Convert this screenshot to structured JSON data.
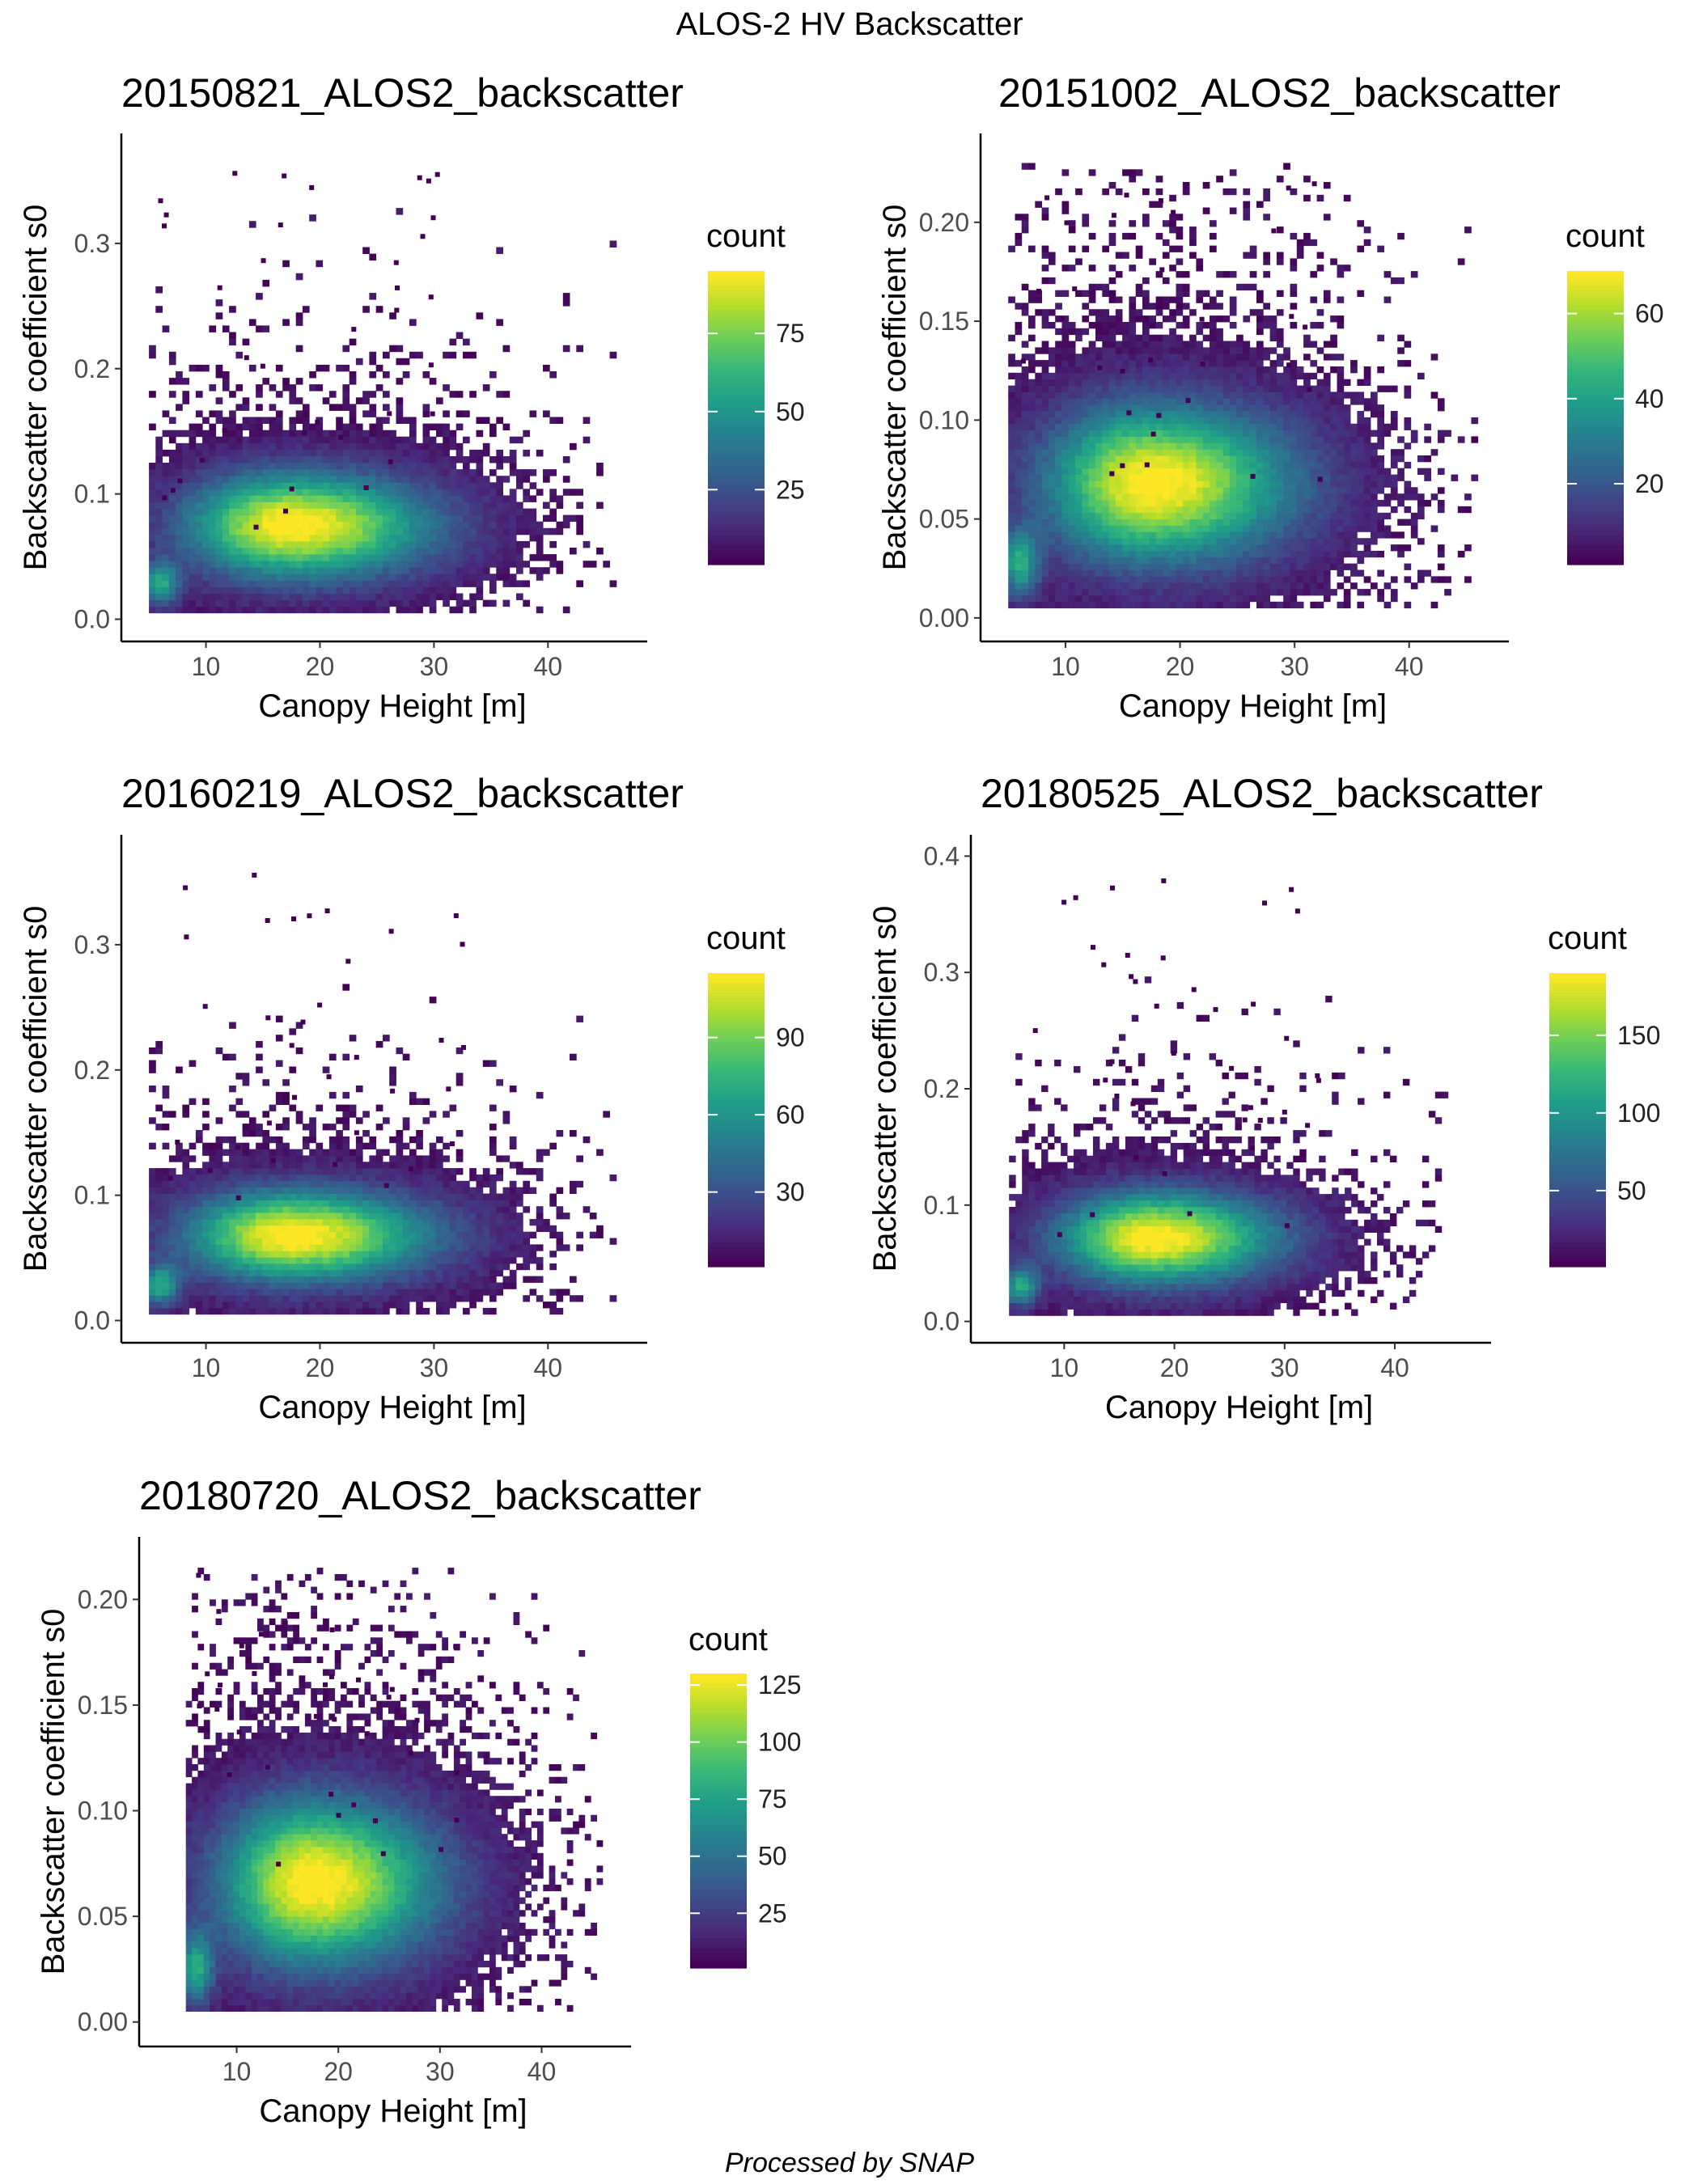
{
  "title": "ALOS-2 HV Backscatter",
  "caption": "Processed by SNAP",
  "chart_data": [
    {
      "type": "heatmap",
      "title": "20150821_ALOS2_backscatter",
      "xlabel": "Canopy Height [m]",
      "ylabel": "Backscatter coefficient s0",
      "xlim": [
        4,
        48
      ],
      "ylim": [
        -0.01,
        0.38
      ],
      "xticks": [
        10,
        20,
        30,
        40
      ],
      "yticks": [
        0.0,
        0.1,
        0.2,
        0.3
      ],
      "ytick_labels": [
        "0.0",
        "0.1",
        "0.2",
        "0.3"
      ],
      "legend": {
        "title": "count",
        "min": 1,
        "max": 95,
        "ticks": [
          25,
          50,
          75
        ]
      },
      "cluster": {
        "x_center": 17.5,
        "y_center": 0.075,
        "x_spread": 6.5,
        "y_spread": 0.03
      },
      "secondary_cluster": {
        "x": 6.0,
        "y": 0.028
      },
      "x_extent": [
        5,
        46
      ],
      "y_extent": [
        0.005,
        0.37
      ]
    },
    {
      "type": "heatmap",
      "title": "20151002_ALOS2_backscatter",
      "xlabel": "Canopy Height [m]",
      "ylabel": "Backscatter coefficient s0",
      "xlim": [
        4,
        48
      ],
      "ylim": [
        -0.007,
        0.24
      ],
      "xticks": [
        10,
        20,
        30,
        40
      ],
      "yticks": [
        0.0,
        0.05,
        0.1,
        0.15,
        0.2
      ],
      "ytick_labels": [
        "0.00",
        "0.05",
        "0.10",
        "0.15",
        "0.20"
      ],
      "legend": {
        "title": "count",
        "min": 1,
        "max": 70,
        "ticks": [
          20,
          40,
          60
        ]
      },
      "cluster": {
        "x_center": 17.5,
        "y_center": 0.068,
        "x_spread": 6.5,
        "y_spread": 0.028
      },
      "secondary_cluster": {
        "x": 6.0,
        "y": 0.027
      },
      "x_extent": [
        5,
        46
      ],
      "y_extent": [
        0.005,
        0.23
      ]
    },
    {
      "type": "heatmap",
      "title": "20160219_ALOS2_backscatter",
      "xlabel": "Canopy Height [m]",
      "ylabel": "Backscatter coefficient s0",
      "xlim": [
        4,
        48
      ],
      "ylim": [
        -0.01,
        0.38
      ],
      "xticks": [
        10,
        20,
        30,
        40
      ],
      "yticks": [
        0.0,
        0.1,
        0.2,
        0.3
      ],
      "ytick_labels": [
        "0.0",
        "0.1",
        "0.2",
        "0.3"
      ],
      "legend": {
        "title": "count",
        "min": 1,
        "max": 115,
        "ticks": [
          30,
          60,
          90
        ]
      },
      "cluster": {
        "x_center": 17.5,
        "y_center": 0.068,
        "x_spread": 6.5,
        "y_spread": 0.026
      },
      "secondary_cluster": {
        "x": 6.0,
        "y": 0.028
      },
      "x_extent": [
        5,
        46
      ],
      "y_extent": [
        0.005,
        0.36
      ]
    },
    {
      "type": "heatmap",
      "title": "20180525_ALOS2_backscatter",
      "xlabel": "Canopy Height [m]",
      "ylabel": "Backscatter coefficient s0",
      "xlim": [
        3,
        48
      ],
      "ylim": [
        -0.01,
        0.41
      ],
      "xticks": [
        10,
        20,
        30,
        40
      ],
      "yticks": [
        0.0,
        0.1,
        0.2,
        0.3,
        0.4
      ],
      "ytick_labels": [
        "0.0",
        "0.1",
        "0.2",
        "0.3",
        "0.4"
      ],
      "legend": {
        "title": "count",
        "min": 1,
        "max": 190,
        "ticks": [
          50,
          100,
          150
        ]
      },
      "cluster": {
        "x_center": 18.0,
        "y_center": 0.072,
        "x_spread": 6.0,
        "y_spread": 0.028
      },
      "secondary_cluster": {
        "x": 6.0,
        "y": 0.03
      },
      "x_extent": [
        5,
        46
      ],
      "y_extent": [
        0.005,
        0.39
      ]
    },
    {
      "type": "heatmap",
      "title": "20180720_ALOS2_backscatter",
      "xlabel": "Canopy Height [m]",
      "ylabel": "Backscatter coefficient s0",
      "xlim": [
        2,
        48
      ],
      "ylim": [
        -0.007,
        0.225
      ],
      "xticks": [
        10,
        20,
        30,
        40
      ],
      "yticks": [
        0.0,
        0.05,
        0.1,
        0.15,
        0.2
      ],
      "ytick_labels": [
        "0.00",
        "0.05",
        "0.10",
        "0.15",
        "0.20"
      ],
      "legend": {
        "title": "count",
        "min": 1,
        "max": 130,
        "ticks": [
          25,
          50,
          75,
          100,
          125
        ]
      },
      "cluster": {
        "x_center": 17.5,
        "y_center": 0.066,
        "x_spread": 6.5,
        "y_spread": 0.028
      },
      "secondary_cluster": {
        "x": 6.0,
        "y": 0.025
      },
      "x_extent": [
        5,
        46
      ],
      "y_extent": [
        0.005,
        0.215
      ]
    }
  ],
  "colors": {
    "viridis": [
      "#440154",
      "#482878",
      "#3e4989",
      "#31688e",
      "#26828e",
      "#1f9e89",
      "#35b779",
      "#6ece58",
      "#b5de2b",
      "#fde725"
    ]
  }
}
